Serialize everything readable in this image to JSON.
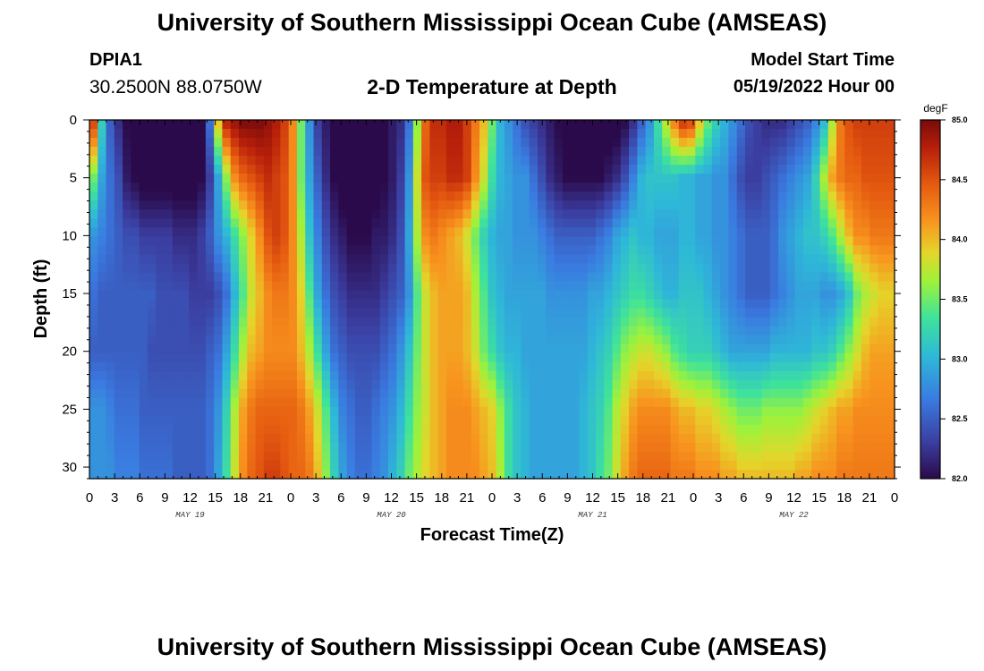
{
  "header": {
    "title": "University of Southern Mississippi Ocean Cube (AMSEAS)",
    "station": "DPIA1",
    "coords": "30.2500N  88.0750W",
    "subtitle": "2-D Temperature at Depth",
    "start_label": "Model Start Time",
    "start_value": "05/19/2022 Hour 00"
  },
  "footer": {
    "title": "University of Southern Mississippi Ocean Cube (AMSEAS)"
  },
  "colors": {
    "min": "#2a0a4a",
    "max": "#800000"
  },
  "chart_data": {
    "type": "heatmap",
    "title": "2-D Temperature at Depth",
    "xlabel": "Forecast Time(Z)",
    "ylabel": "Depth (ft)",
    "x_ticks": [
      "0",
      "3",
      "6",
      "9",
      "12",
      "15",
      "18",
      "21",
      "0",
      "3",
      "6",
      "9",
      "12",
      "15",
      "18",
      "21",
      "0",
      "3",
      "6",
      "9",
      "12",
      "15",
      "18",
      "21",
      "0",
      "3",
      "6",
      "9",
      "12",
      "15",
      "18",
      "21",
      "0"
    ],
    "x_hours_range": [
      0,
      96
    ],
    "day_labels": [
      {
        "label": "MAY 19",
        "hour": 12
      },
      {
        "label": "MAY 20",
        "hour": 36
      },
      {
        "label": "MAY 21",
        "hour": 60
      },
      {
        "label": "MAY 22",
        "hour": 84
      }
    ],
    "y_ticks": [
      "0",
      "5",
      "10",
      "15",
      "20",
      "25",
      "30"
    ],
    "ylim": [
      0,
      31
    ],
    "colorbar": {
      "unit": "degF",
      "range": [
        82.0,
        85.0
      ],
      "ticks": [
        "85.0",
        "84.5",
        "84.0",
        "83.5",
        "83.0",
        "82.5",
        "82.0"
      ]
    },
    "depths": [
      0,
      5,
      10,
      15,
      20,
      25,
      31
    ],
    "hours": [
      0,
      1,
      2,
      3,
      4,
      5,
      6,
      7,
      8,
      9,
      10,
      11,
      12,
      13,
      14,
      15,
      16,
      17,
      18,
      19,
      20,
      21,
      22,
      23,
      24,
      25,
      26,
      27,
      28,
      29,
      30,
      31,
      32,
      33,
      34,
      35,
      36,
      37,
      38,
      39,
      40,
      41,
      42,
      43,
      44,
      45,
      46,
      47,
      48,
      49,
      50,
      51,
      52,
      53,
      54,
      55,
      56,
      57,
      58,
      59,
      60,
      61,
      62,
      63,
      64,
      65,
      66,
      67,
      68,
      69,
      70,
      71,
      72,
      73,
      74,
      75,
      76,
      77,
      78,
      79,
      80,
      81,
      82,
      83,
      84,
      85,
      86,
      87,
      88,
      89,
      90,
      91,
      92,
      93,
      94,
      95,
      96
    ],
    "values": [
      [
        84.6,
        83.2,
        82.5,
        82.2,
        82.0,
        82.0,
        82.0,
        81.9,
        81.8,
        81.8,
        81.8,
        81.8,
        81.8,
        81.9,
        82.6,
        84.0,
        84.8,
        84.9,
        85.0,
        85.0,
        85.0,
        84.9,
        84.8,
        84.6,
        84.2,
        83.5,
        82.8,
        82.3,
        82.1,
        82.0,
        81.9,
        81.9,
        81.9,
        81.9,
        81.9,
        82.0,
        82.1,
        82.2,
        82.6,
        83.6,
        84.4,
        84.7,
        84.7,
        84.8,
        84.8,
        84.6,
        84.3,
        84.0,
        83.5,
        83.0,
        82.8,
        82.6,
        82.4,
        82.3,
        82.2,
        82.1,
        82.0,
        81.9,
        81.9,
        81.9,
        81.9,
        81.9,
        81.9,
        81.9,
        82.0,
        82.2,
        82.5,
        82.8,
        83.3,
        83.8,
        84.3,
        84.7,
        84.6,
        84.0,
        83.5,
        83.2,
        83.0,
        82.8,
        82.6,
        82.4,
        82.3,
        82.2,
        82.2,
        82.2,
        82.3,
        82.4,
        82.5,
        82.7,
        83.0,
        83.7,
        84.3,
        84.5,
        84.6,
        84.6,
        84.6,
        84.6,
        84.6
      ],
      [
        83.5,
        82.9,
        82.6,
        82.4,
        82.1,
        82.0,
        81.9,
        81.9,
        81.9,
        81.9,
        81.9,
        81.9,
        81.9,
        82.0,
        82.3,
        82.9,
        83.6,
        84.2,
        84.4,
        84.5,
        84.6,
        84.7,
        84.6,
        84.5,
        84.2,
        83.5,
        82.9,
        82.5,
        82.2,
        82.0,
        81.9,
        81.9,
        81.9,
        81.9,
        81.9,
        82.0,
        82.1,
        82.3,
        82.8,
        83.8,
        84.5,
        84.6,
        84.6,
        84.7,
        84.7,
        84.6,
        84.2,
        83.8,
        83.3,
        83.0,
        82.9,
        82.8,
        82.8,
        82.6,
        82.4,
        82.2,
        82.1,
        82.0,
        82.0,
        82.0,
        82.0,
        82.0,
        82.1,
        82.2,
        82.4,
        82.7,
        83.0,
        83.1,
        83.1,
        83.1,
        83.1,
        83.0,
        83.0,
        82.9,
        82.9,
        82.8,
        82.8,
        82.6,
        82.4,
        82.3,
        82.3,
        82.4,
        82.5,
        82.6,
        82.7,
        82.8,
        82.9,
        83.2,
        83.7,
        84.1,
        84.3,
        84.4,
        84.4,
        84.5,
        84.5,
        84.5,
        84.5
      ],
      [
        82.8,
        82.7,
        82.6,
        82.5,
        82.4,
        82.4,
        82.3,
        82.3,
        82.3,
        82.3,
        82.2,
        82.2,
        82.2,
        82.3,
        82.5,
        82.8,
        83.0,
        83.3,
        83.6,
        83.9,
        84.2,
        84.5,
        84.6,
        84.5,
        84.2,
        83.7,
        83.1,
        82.7,
        82.4,
        82.2,
        82.1,
        82.0,
        82.0,
        82.0,
        82.1,
        82.1,
        82.2,
        82.4,
        82.9,
        83.7,
        84.2,
        84.3,
        84.2,
        84.1,
        84.0,
        83.8,
        83.5,
        83.2,
        83.0,
        82.9,
        82.9,
        82.8,
        82.8,
        82.8,
        82.7,
        82.6,
        82.5,
        82.5,
        82.5,
        82.5,
        82.5,
        82.6,
        82.7,
        82.9,
        83.0,
        83.1,
        83.0,
        83.0,
        82.9,
        82.9,
        82.9,
        83.0,
        83.0,
        82.9,
        82.9,
        82.8,
        82.8,
        82.7,
        82.6,
        82.5,
        82.5,
        82.5,
        82.6,
        82.8,
        82.9,
        83.0,
        83.1,
        83.1,
        83.2,
        83.4,
        83.7,
        84.0,
        84.2,
        84.2,
        84.3,
        84.3,
        84.3
      ],
      [
        82.6,
        82.5,
        82.5,
        82.5,
        82.5,
        82.5,
        82.5,
        82.5,
        82.4,
        82.4,
        82.4,
        82.4,
        82.3,
        82.3,
        82.3,
        82.4,
        82.6,
        83.0,
        83.4,
        83.8,
        84.0,
        84.2,
        84.3,
        84.3,
        84.2,
        83.9,
        83.4,
        82.9,
        82.6,
        82.4,
        82.3,
        82.2,
        82.2,
        82.2,
        82.2,
        82.3,
        82.4,
        82.5,
        82.8,
        83.4,
        83.8,
        84.0,
        84.1,
        84.1,
        84.1,
        84.0,
        83.7,
        83.4,
        83.1,
        83.0,
        82.9,
        82.9,
        82.9,
        82.9,
        82.9,
        82.8,
        82.8,
        82.8,
        82.8,
        82.8,
        82.9,
        82.9,
        83.0,
        83.1,
        83.2,
        83.3,
        83.3,
        83.2,
        83.1,
        83.0,
        83.0,
        83.1,
        83.1,
        83.1,
        83.0,
        82.9,
        82.8,
        82.7,
        82.6,
        82.5,
        82.5,
        82.5,
        82.6,
        82.7,
        82.8,
        82.9,
        82.9,
        82.9,
        82.8,
        82.8,
        82.9,
        83.1,
        83.5,
        83.7,
        83.8,
        83.9,
        83.9
      ],
      [
        82.5,
        82.5,
        82.5,
        82.5,
        82.5,
        82.5,
        82.5,
        82.4,
        82.4,
        82.4,
        82.4,
        82.4,
        82.4,
        82.4,
        82.5,
        82.6,
        82.9,
        83.3,
        83.7,
        84.0,
        84.1,
        84.2,
        84.2,
        84.2,
        84.2,
        84.0,
        83.7,
        83.3,
        82.9,
        82.6,
        82.5,
        82.4,
        82.4,
        82.4,
        82.4,
        82.5,
        82.6,
        82.8,
        83.1,
        83.5,
        83.8,
        84.0,
        84.1,
        84.1,
        84.1,
        84.0,
        83.8,
        83.5,
        83.3,
        83.1,
        83.0,
        83.0,
        82.9,
        82.9,
        82.9,
        82.9,
        82.9,
        82.9,
        82.9,
        82.9,
        83.0,
        83.1,
        83.2,
        83.4,
        83.6,
        83.7,
        83.8,
        83.8,
        83.7,
        83.6,
        83.4,
        83.3,
        83.2,
        83.2,
        83.2,
        83.1,
        83.0,
        82.9,
        82.9,
        82.9,
        82.9,
        82.9,
        83.0,
        83.0,
        83.0,
        83.0,
        83.0,
        83.1,
        83.1,
        83.2,
        83.4,
        83.6,
        83.8,
        84.0,
        84.1,
        84.1,
        84.1
      ],
      [
        82.8,
        82.8,
        82.7,
        82.6,
        82.6,
        82.6,
        82.5,
        82.5,
        82.5,
        82.5,
        82.5,
        82.5,
        82.5,
        82.5,
        82.6,
        82.8,
        83.2,
        83.7,
        84.1,
        84.3,
        84.4,
        84.4,
        84.4,
        84.4,
        84.4,
        84.3,
        84.1,
        83.8,
        83.4,
        83.0,
        82.7,
        82.6,
        82.5,
        82.5,
        82.6,
        82.7,
        82.8,
        83.0,
        83.3,
        83.6,
        83.8,
        84.0,
        84.1,
        84.2,
        84.2,
        84.2,
        84.1,
        84.0,
        83.9,
        83.6,
        83.3,
        83.1,
        83.0,
        82.9,
        82.9,
        82.9,
        82.9,
        82.9,
        82.9,
        83.0,
        83.1,
        83.2,
        83.4,
        83.7,
        83.9,
        84.1,
        84.2,
        84.2,
        84.2,
        84.2,
        84.1,
        84.0,
        84.0,
        83.9,
        83.9,
        83.8,
        83.7,
        83.6,
        83.5,
        83.5,
        83.5,
        83.6,
        83.6,
        83.6,
        83.6,
        83.6,
        83.7,
        83.8,
        83.9,
        84.0,
        84.1,
        84.1,
        84.2,
        84.2,
        84.2,
        84.2,
        84.2
      ],
      [
        82.8,
        82.8,
        82.8,
        82.7,
        82.7,
        82.7,
        82.6,
        82.6,
        82.6,
        82.6,
        82.5,
        82.5,
        82.5,
        82.5,
        82.6,
        82.9,
        83.3,
        83.8,
        84.2,
        84.4,
        84.5,
        84.6,
        84.6,
        84.5,
        84.4,
        84.4,
        84.3,
        84.0,
        83.6,
        83.2,
        82.9,
        82.7,
        82.6,
        82.6,
        82.7,
        82.8,
        83.0,
        83.2,
        83.5,
        83.7,
        83.9,
        84.0,
        84.1,
        84.2,
        84.2,
        84.2,
        84.2,
        84.1,
        84.0,
        83.7,
        83.3,
        83.1,
        83.0,
        82.9,
        82.9,
        82.9,
        82.9,
        82.9,
        82.9,
        83.0,
        83.1,
        83.3,
        83.5,
        83.8,
        84.1,
        84.3,
        84.4,
        84.4,
        84.4,
        84.4,
        84.3,
        84.3,
        84.3,
        84.2,
        84.2,
        84.2,
        84.1,
        84.1,
        84.0,
        84.0,
        84.0,
        84.0,
        84.0,
        84.0,
        84.0,
        84.1,
        84.1,
        84.2,
        84.2,
        84.2,
        84.3,
        84.3,
        84.3,
        84.3,
        84.3,
        84.3,
        84.3
      ]
    ]
  }
}
